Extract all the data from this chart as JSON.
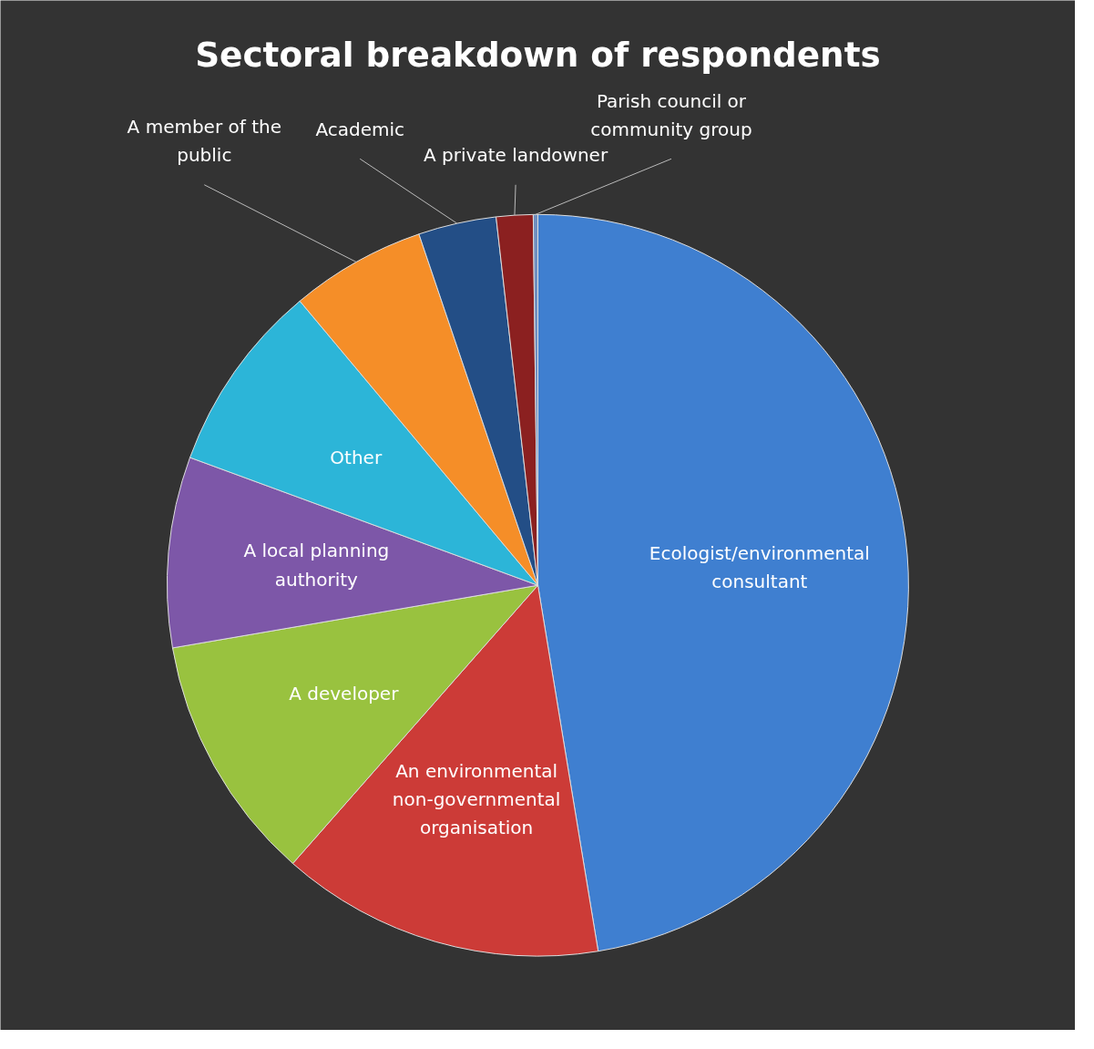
{
  "chart_data": {
    "type": "pie",
    "title": "Sectoral breakdown of respondents",
    "categories": [
      "Ecologist/environmental consultant",
      "An environmental non-governmental organisation",
      "A developer",
      "A local planning authority",
      "Other",
      "A member of the public",
      "Academic",
      "A private landowner",
      "Parish council or community group"
    ],
    "values": [
      47.4,
      14.1,
      10.8,
      8.3,
      8.3,
      5.9,
      3.4,
      1.6,
      0.2
    ],
    "colors": [
      "#3f7fd0",
      "#cc3b37",
      "#99c23f",
      "#7d57a8",
      "#2cb5d8",
      "#f58e28",
      "#234e86",
      "#8b2020",
      "#6f8fbf"
    ]
  }
}
